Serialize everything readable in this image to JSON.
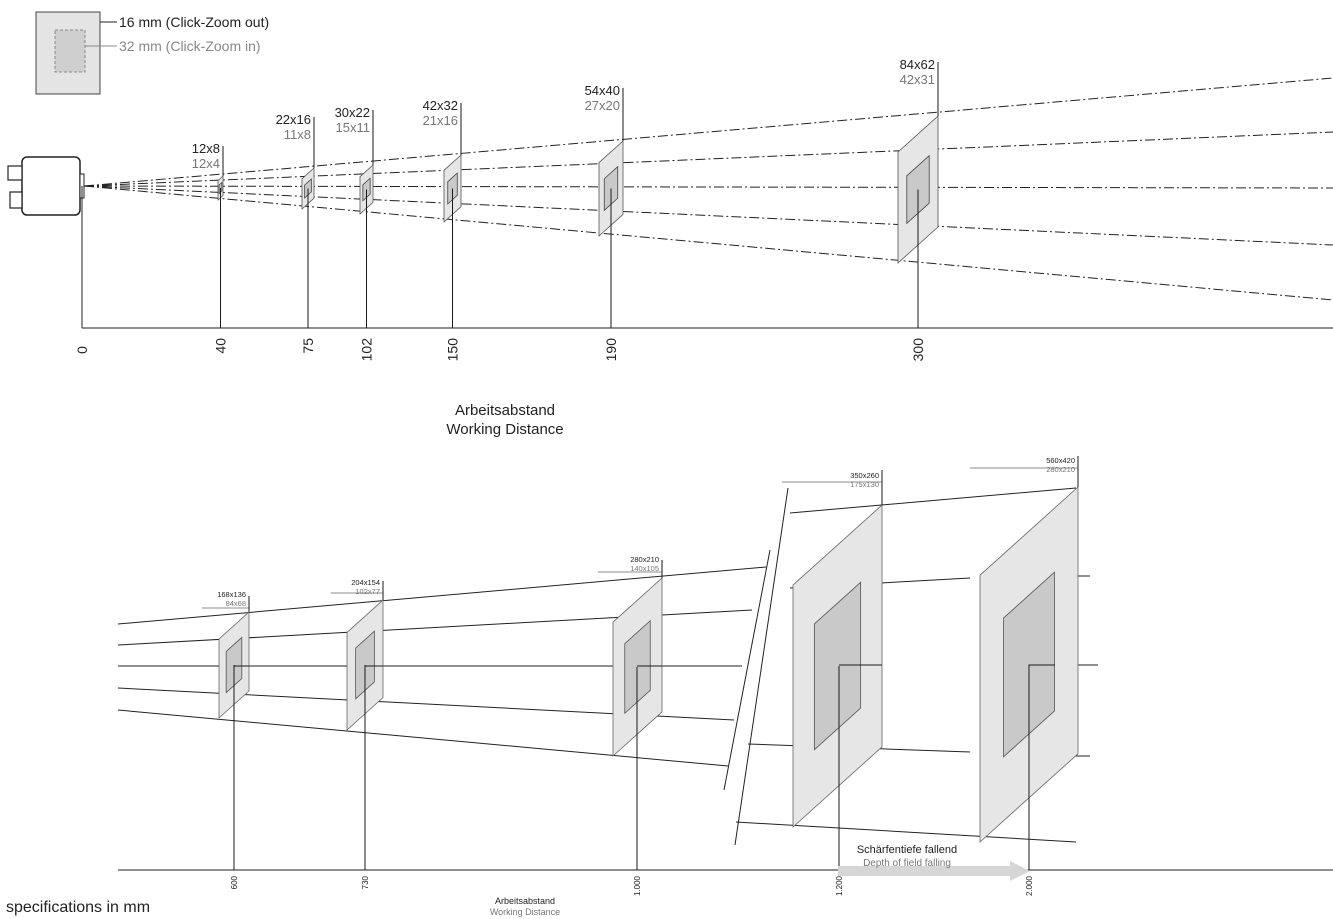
{
  "legend": {
    "zoom_out": "16 mm (Click-Zoom out)",
    "zoom_in": "32 mm (Click-Zoom in)"
  },
  "top": {
    "fields": [
      {
        "distance": "40",
        "outer": "12x8",
        "inner": "12x4"
      },
      {
        "distance": "75",
        "outer": "22x16",
        "inner": "11x8"
      },
      {
        "distance": "102",
        "outer": "30x22",
        "inner": "15x11"
      },
      {
        "distance": "150",
        "outer": "42x32",
        "inner": "21x16"
      },
      {
        "distance": "190",
        "outer": "54x40",
        "inner": "27x20"
      },
      {
        "distance": "300",
        "outer": "84x62",
        "inner": "42x31"
      }
    ],
    "origin_label": "0",
    "axis_title_de": "Arbeitsabstand",
    "axis_title_en": "Working Distance"
  },
  "bottom": {
    "fields": [
      {
        "distance": "600",
        "outer": "168x136",
        "inner": "84x68"
      },
      {
        "distance": "730",
        "outer": "204x154",
        "inner": "102x77"
      },
      {
        "distance": "1.000",
        "outer": "280x210",
        "inner": "140x105"
      },
      {
        "distance": "1.200",
        "outer": "350x260",
        "inner": "175x130"
      },
      {
        "distance": "2.000",
        "outer": "560x420",
        "inner": "280x210"
      }
    ],
    "axis_title_de": "Arbeitsabstand",
    "axis_title_en": "Working Distance",
    "dof_de": "Schärfentiefe fallend",
    "dof_en": "Depth of field falling"
  },
  "footer": "specifications in mm",
  "colors": {
    "outer_fill": "#e6e6e6",
    "inner_fill": "#c9c9c9",
    "line": "#1a1a1a",
    "inner_text": "#777777",
    "arrow": "#d6d6d6"
  }
}
